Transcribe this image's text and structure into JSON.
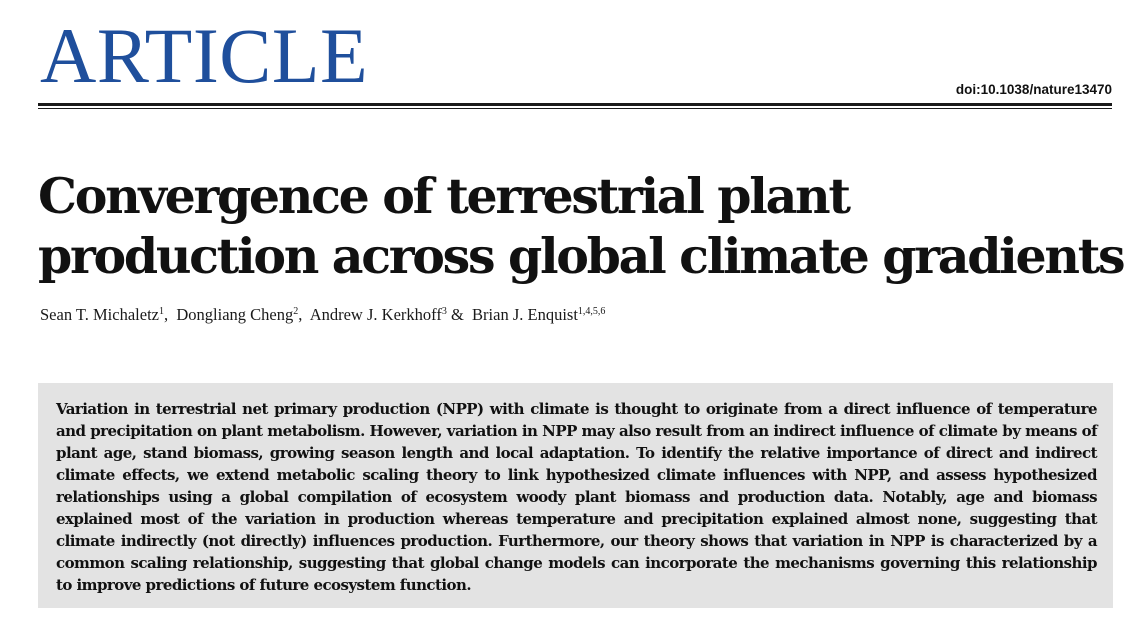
{
  "header": {
    "section_label": "ARTICLE",
    "doi": "doi:10.1038/nature13470"
  },
  "title": "Convergence of terrestrial plant production across global climate gradients",
  "authors": [
    {
      "name": "Sean T. Michaletz",
      "affiliations": "1",
      "separator": ", "
    },
    {
      "name": "Dongliang Cheng",
      "affiliations": "2",
      "separator": ", "
    },
    {
      "name": "Andrew J. Kerkhoff",
      "affiliations": "3",
      "separator": " & "
    },
    {
      "name": "Brian J. Enquist",
      "affiliations": "1,4,5,6",
      "separator": ""
    }
  ],
  "abstract": "Variation in terrestrial net primary production (NPP) with climate is thought to originate from a direct influence of temperature and precipitation on plant metabolism. However, variation in NPP may also result from an indirect influence of climate by means of plant age, stand biomass, growing season length and local adaptation. To identify the relative importance of direct and indirect climate effects, we extend metabolic scaling theory to link hypothesized climate influences with NPP, and assess hypothesized relationships using a global compilation of ecosystem woody plant biomass and production data. Notably, age and biomass explained most of the variation in production whereas temperature and precipitation explained almost none, suggesting that climate indirectly (not directly) influences production. Furthermore, our theory shows that variation in NPP is characterized by a common scaling relationship, suggesting that global change models can incorporate the mechanisms governing this relationship to improve predictions of future ecosystem function.",
  "colors": {
    "section_label": "#1f4f9c",
    "abstract_background": "#e3e3e3",
    "text": "#111111"
  }
}
